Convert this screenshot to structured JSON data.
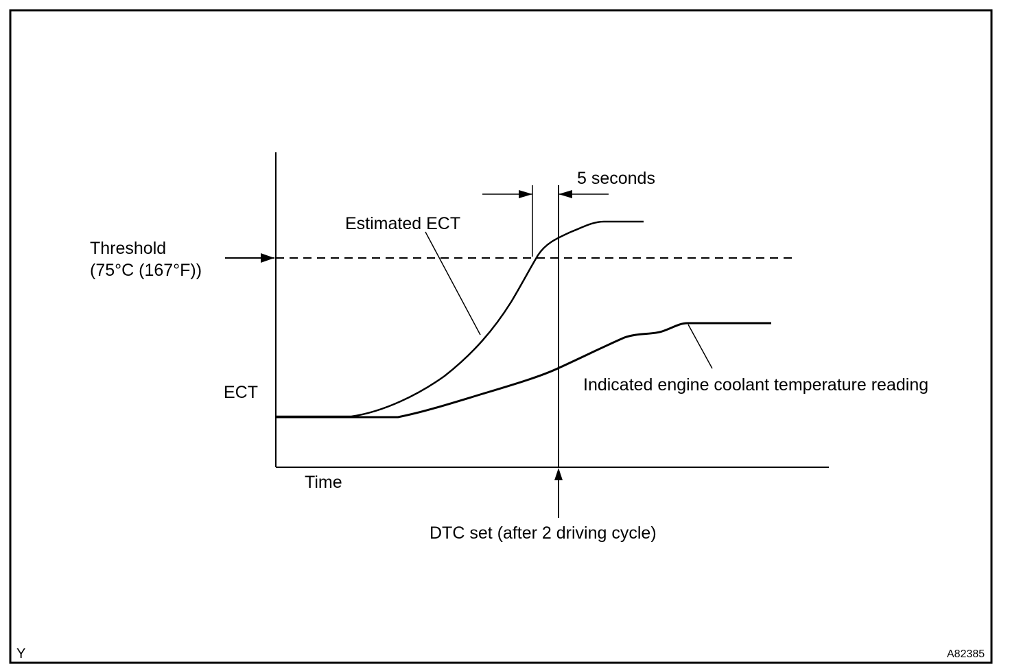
{
  "diagram": {
    "y_axis_label": "ECT",
    "x_axis_label": "Time",
    "threshold_line1": "Threshold",
    "threshold_line2": "(75°C (167°F))",
    "estimated_label": "Estimated ECT",
    "interval_label": "5 seconds",
    "indicated_label": "Indicated engine coolant temperature reading",
    "dtc_label": "DTC set (after 2 driving cycle)",
    "corner_code": "Y",
    "figure_id": "A82385"
  }
}
